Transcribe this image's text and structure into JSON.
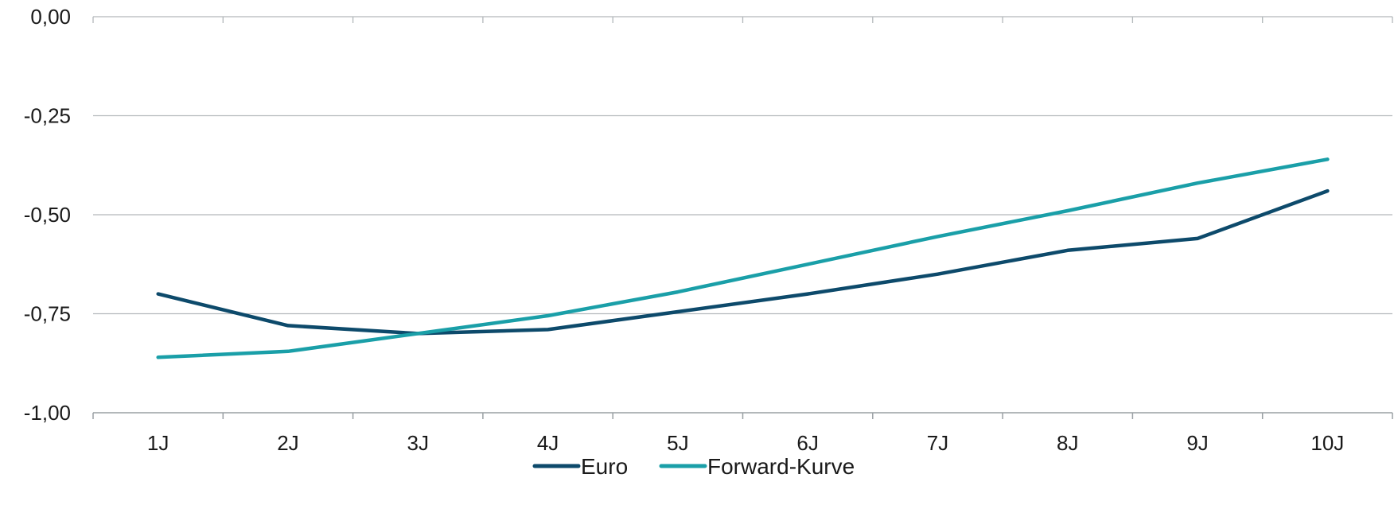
{
  "chart_data": {
    "type": "line",
    "title": "",
    "xlabel": "",
    "ylabel": "",
    "categories": [
      "1J",
      "2J",
      "3J",
      "4J",
      "5J",
      "6J",
      "7J",
      "8J",
      "9J",
      "10J"
    ],
    "y_ticks": [
      "0,00",
      "-0,25",
      "-0,50",
      "-0,75",
      "-1,00"
    ],
    "y_tick_values": [
      0,
      -0.25,
      -0.5,
      -0.75,
      -1.0
    ],
    "ylim": [
      -1.0,
      0.0
    ],
    "grid": true,
    "legend_position": "bottom",
    "series": [
      {
        "name": "Euro",
        "color": "#0d4a6b",
        "values": [
          -0.7,
          -0.78,
          -0.8,
          -0.79,
          -0.745,
          -0.7,
          -0.65,
          -0.59,
          -0.56,
          -0.44
        ]
      },
      {
        "name": "Forward-Kurve",
        "color": "#1a9fa8",
        "values": [
          -0.86,
          -0.845,
          -0.8,
          -0.755,
          -0.695,
          -0.625,
          -0.555,
          -0.49,
          -0.42,
          -0.36
        ]
      }
    ]
  }
}
